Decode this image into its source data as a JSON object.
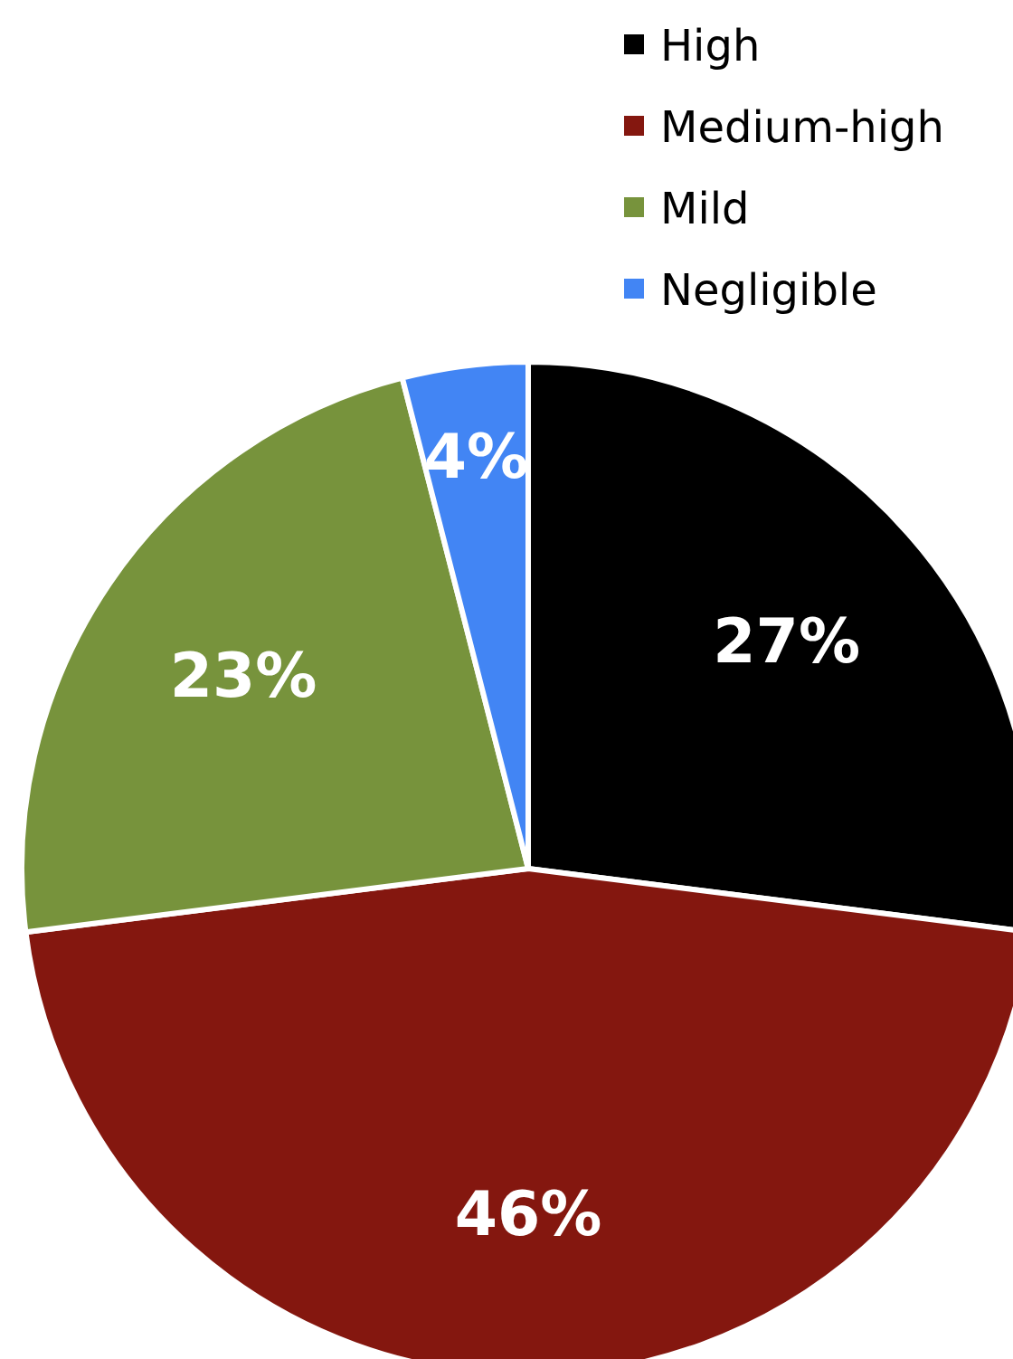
{
  "chart_data": {
    "type": "pie",
    "categories": [
      "High",
      "Medium-high",
      "Mild",
      "Negligible"
    ],
    "values": [
      27,
      46,
      23,
      4
    ],
    "colors": [
      "#000000",
      "#84170f",
      "#77933c",
      "#4285f4"
    ],
    "value_labels": [
      "27%",
      "46%",
      "23%",
      "4%"
    ],
    "legend": "top right"
  }
}
